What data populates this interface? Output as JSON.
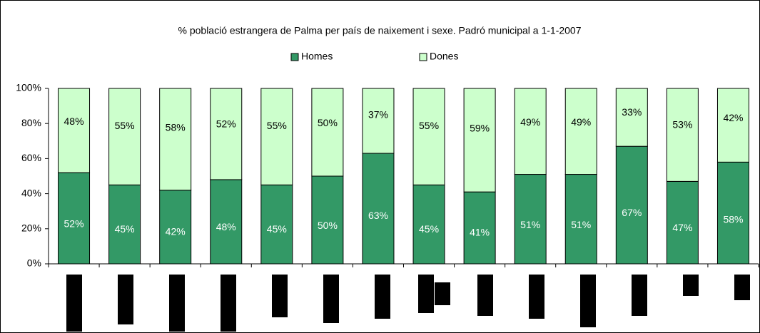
{
  "chart_data": {
    "type": "stacked-bar",
    "title": "% població estrangera de Palma per país de naixement i sexe. Padró municipal a 1-1-2007",
    "categories": [
      null,
      null,
      null,
      null,
      null,
      null,
      null,
      null,
      null,
      null,
      null,
      null,
      null,
      null
    ],
    "series": [
      {
        "name": "Homes",
        "color": "#339966",
        "values": [
          52,
          45,
          42,
          48,
          45,
          50,
          63,
          45,
          41,
          51,
          51,
          67,
          47,
          58
        ],
        "value_labels": [
          "52%",
          "45%",
          "42%",
          "48%",
          "45%",
          "50%",
          "63%",
          "45%",
          "41%",
          "51%",
          "51%",
          "67%",
          "47%",
          "58%"
        ]
      },
      {
        "name": "Dones",
        "color": "#ccffcc",
        "values": [
          48,
          55,
          58,
          52,
          55,
          50,
          37,
          55,
          59,
          49,
          49,
          33,
          53,
          42
        ],
        "value_labels": [
          "48%",
          "55%",
          "58%",
          "52%",
          "55%",
          "50%",
          "37%",
          "55%",
          "59%",
          "49%",
          "49%",
          "33%",
          "53%",
          "42%"
        ]
      }
    ],
    "ylim": [
      0,
      100
    ],
    "yticks": [
      {
        "value": 0,
        "label": "0%"
      },
      {
        "value": 20,
        "label": "20%"
      },
      {
        "value": 40,
        "label": "40%"
      },
      {
        "value": 60,
        "label": "60%"
      },
      {
        "value": 80,
        "label": "80%"
      },
      {
        "value": 100,
        "label": "100%"
      }
    ],
    "grid": false,
    "legend": "top"
  }
}
